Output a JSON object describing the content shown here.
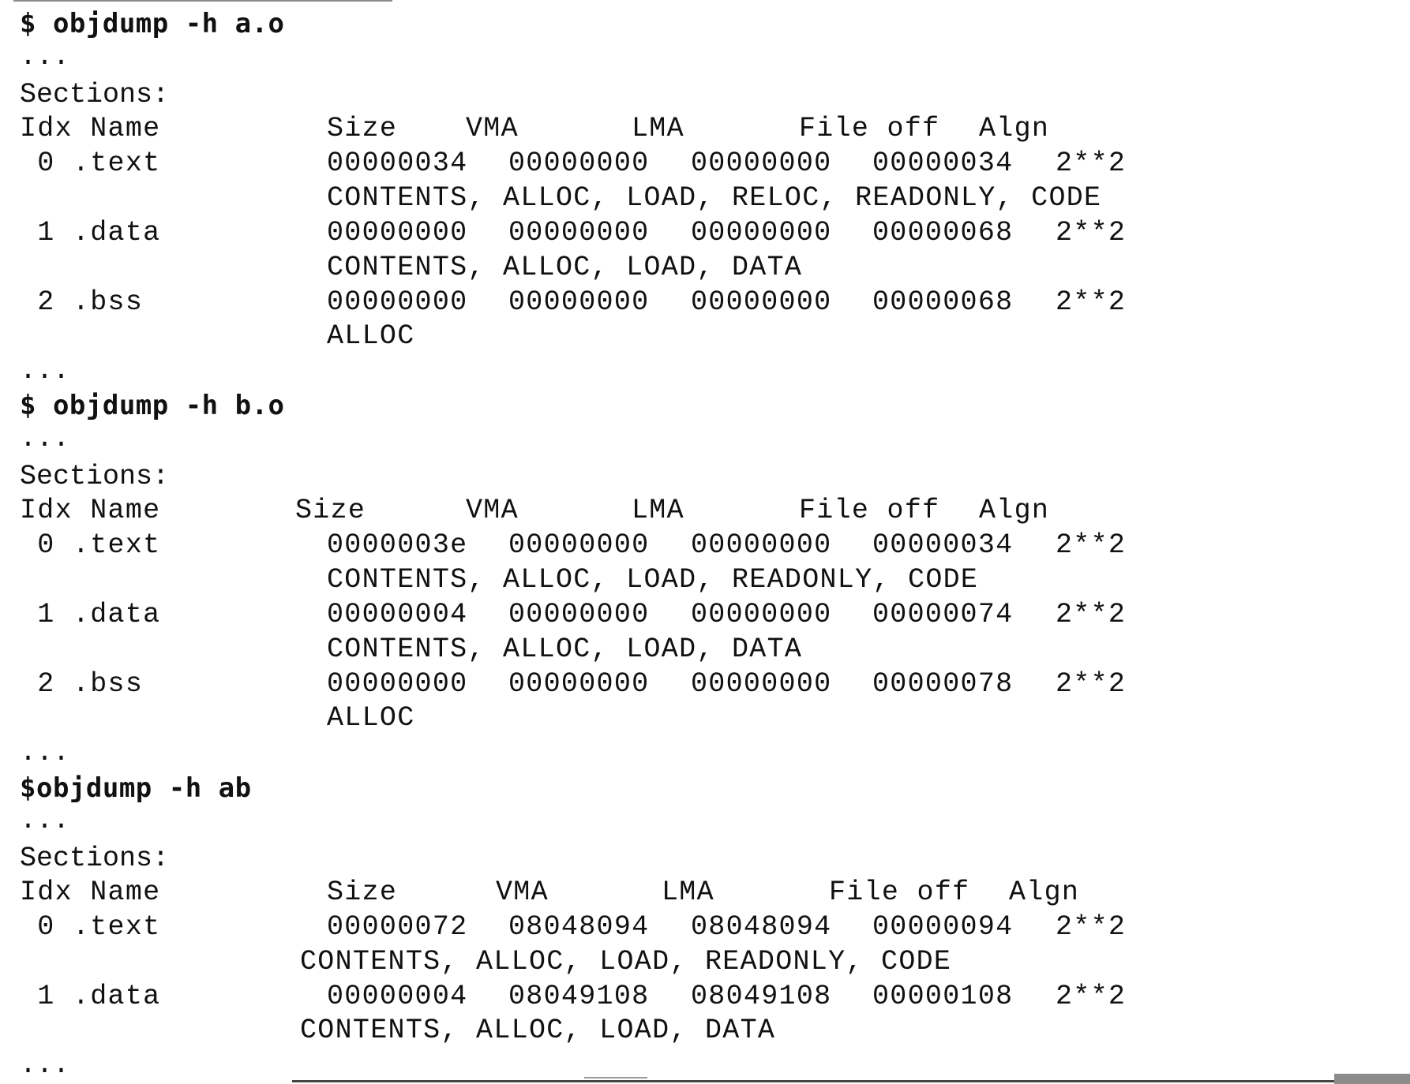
{
  "blocks": [
    {
      "command": "$ objdump -h a.o",
      "ellipsis_top": "...",
      "sections_label": "Sections:",
      "header": {
        "idx_name": "Idx Name",
        "size": "Size",
        "vma": "VMA",
        "lma": "LMA",
        "file_off": "File off",
        "algn": "Algn"
      },
      "rows": [
        {
          "idx_name": " 0 .text",
          "size": "00000034",
          "vma": "00000000",
          "lma": "00000000",
          "file_off": "00000034",
          "algn": "2**2",
          "flags": "CONTENTS, ALLOC, LOAD, RELOC, READONLY, CODE"
        },
        {
          "idx_name": " 1 .data",
          "size": "00000000",
          "vma": "00000000",
          "lma": "00000000",
          "file_off": "00000068",
          "algn": "2**2",
          "flags": "CONTENTS, ALLOC, LOAD, DATA"
        },
        {
          "idx_name": " 2 .bss",
          "size": "00000000",
          "vma": "00000000",
          "lma": "00000000",
          "file_off": "00000068",
          "algn": "2**2",
          "flags": "ALLOC"
        }
      ],
      "ellipsis_bottom": "..."
    },
    {
      "command": "$ objdump -h b.o",
      "ellipsis_top": "...",
      "sections_label": "Sections:",
      "header": {
        "idx_name": "Idx Name",
        "size": "Size",
        "vma": "VMA",
        "lma": "LMA",
        "file_off": "File off",
        "algn": "Algn"
      },
      "rows": [
        {
          "idx_name": " 0 .text",
          "size": "0000003e",
          "vma": "00000000",
          "lma": "00000000",
          "file_off": "00000034",
          "algn": "2**2",
          "flags": "CONTENTS, ALLOC, LOAD, READONLY, CODE"
        },
        {
          "idx_name": " 1 .data",
          "size": "00000004",
          "vma": "00000000",
          "lma": "00000000",
          "file_off": "00000074",
          "algn": "2**2",
          "flags": "CONTENTS, ALLOC, LOAD, DATA"
        },
        {
          "idx_name": " 2 .bss",
          "size": "00000000",
          "vma": "00000000",
          "lma": "00000000",
          "file_off": "00000078",
          "algn": "2**2",
          "flags": "ALLOC"
        }
      ],
      "ellipsis_bottom": "..."
    },
    {
      "command": "$objdump -h ab",
      "ellipsis_top": "...",
      "sections_label": "Sections:",
      "header": {
        "idx_name": "Idx Name",
        "size": "Size",
        "vma": "VMA",
        "lma": "LMA",
        "file_off": "File off",
        "algn": "Algn"
      },
      "rows": [
        {
          "idx_name": " 0 .text",
          "size": "00000072",
          "vma": "08048094",
          "lma": "08048094",
          "file_off": "00000094",
          "algn": "2**2",
          "flags": "CONTENTS, ALLOC, LOAD, READONLY, CODE"
        },
        {
          "idx_name": " 1 .data",
          "size": "00000004",
          "vma": "08049108",
          "lma": "08049108",
          "file_off": "00000108",
          "algn": "2**2",
          "flags": "CONTENTS, ALLOC, LOAD, DATA"
        }
      ],
      "ellipsis_bottom": "..."
    }
  ]
}
